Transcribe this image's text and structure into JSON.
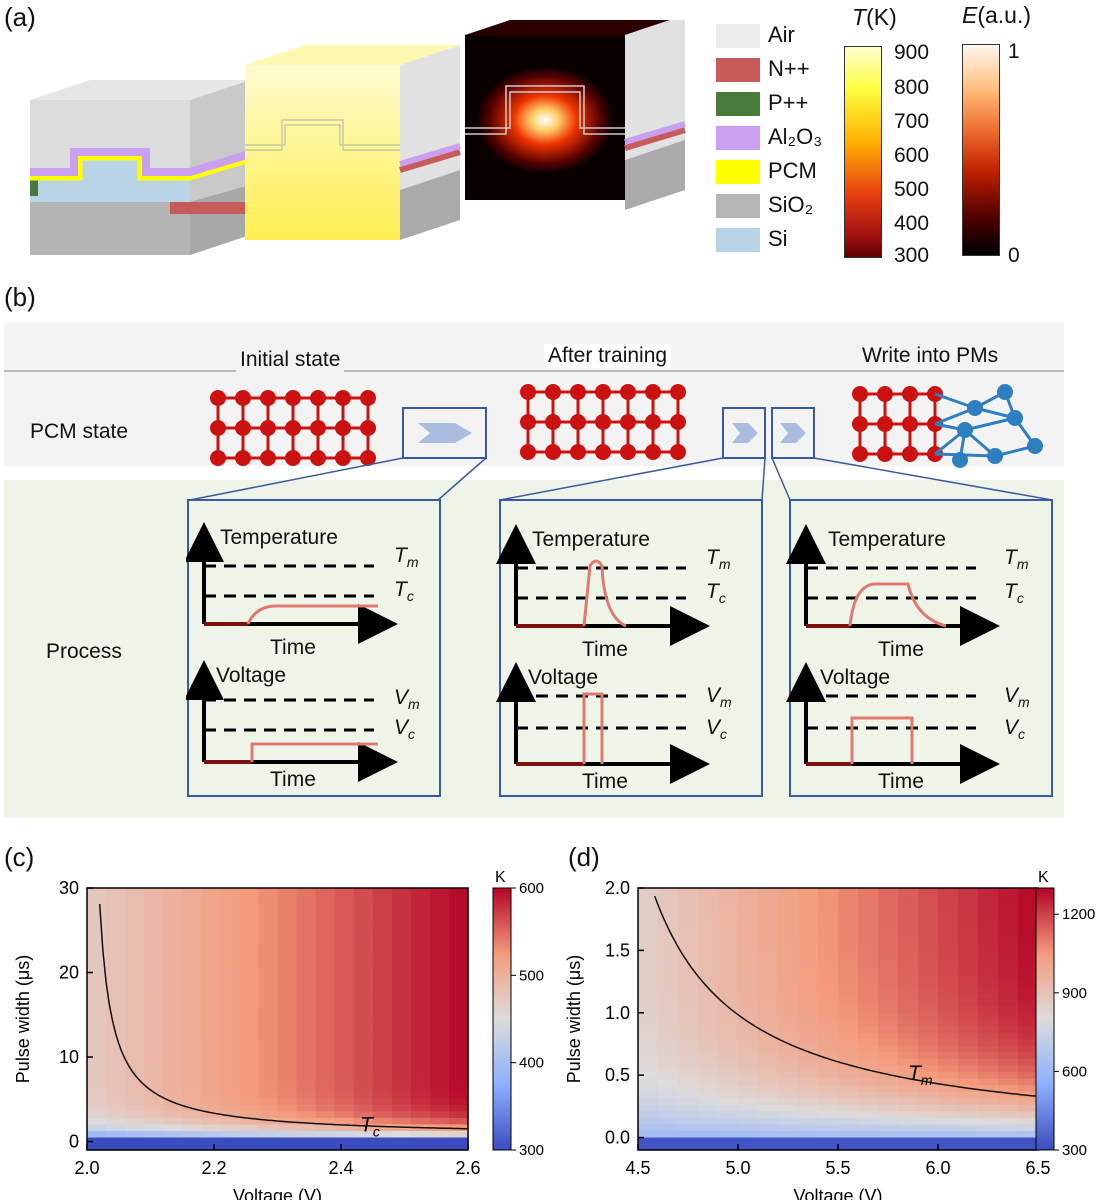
{
  "panels": {
    "a": "(a)",
    "b": "(b)",
    "c": "(c)",
    "d": "(d)"
  },
  "legend_a": [
    {
      "label": "Air",
      "color": "#ebebeb"
    },
    {
      "label": "N++",
      "color": "#c85a5a"
    },
    {
      "label": "P++",
      "color": "#4a7a3a"
    },
    {
      "label": "Al₂O₃",
      "color": "#c8a0ef"
    },
    {
      "label": "PCM",
      "color": "#ffff00"
    },
    {
      "label": "SiO₂",
      "color": "#b5b5b5"
    },
    {
      "label": "Si",
      "color": "#b8d4e6"
    }
  ],
  "colorbar_T": {
    "symbol": "T",
    "unit": "(K)",
    "ticks": [
      "900",
      "800",
      "700",
      "600",
      "500",
      "400",
      "300"
    ]
  },
  "colorbar_E": {
    "symbol": "E",
    "unit": "(a.u.)",
    "max": "1",
    "min": "0"
  },
  "panel_b": {
    "states": [
      "Initial state",
      "After training",
      "Write into PMs"
    ],
    "row_pcm": "PCM state",
    "row_process": "Process",
    "temp_label": "Temperature",
    "volt_label": "Voltage",
    "time_label": "Time",
    "Tm": "T",
    "Tm_sub": "m",
    "Tc": "T",
    "Tc_sub": "c",
    "Vm": "V",
    "Vm_sub": "m",
    "Vc": "V",
    "Vc_sub": "c"
  },
  "chart_data": [
    {
      "type": "heatmap",
      "title": "(c)",
      "xlabel": "Voltage (V)",
      "ylabel": "Pulse width (μs)",
      "xlim": [
        2.0,
        2.6
      ],
      "ylim": [
        -1,
        30
      ],
      "xticks": [
        "2.0",
        "2.2",
        "2.4",
        "2.6"
      ],
      "yticks": [
        "0",
        "10",
        "20",
        "30"
      ],
      "colorbar": {
        "unit": "K",
        "range": [
          300,
          600
        ],
        "ticks": [
          "600",
          "500",
          "400",
          "300"
        ]
      },
      "contour": {
        "label": "T",
        "sub": "c",
        "level_K": 450
      },
      "values_note": "temperature rises with voltage; ~300 K below ~0.5 μs"
    },
    {
      "type": "heatmap",
      "title": "(d)",
      "xlabel": "Voltage (V)",
      "ylabel": "Pulse width (μs)",
      "xlim": [
        4.5,
        6.5
      ],
      "ylim": [
        -0.1,
        2.0
      ],
      "xticks": [
        "4.5",
        "5.0",
        "5.5",
        "6.0",
        "6.5"
      ],
      "yticks": [
        "0.0",
        "0.5",
        "1.0",
        "1.5",
        "2.0"
      ],
      "colorbar": {
        "unit": "K",
        "range": [
          300,
          1300
        ],
        "ticks": [
          "1200",
          "900",
          "600",
          "300"
        ]
      },
      "contour": {
        "label": "T",
        "sub": "m",
        "level_K": 900
      },
      "values_note": "temperature rises with voltage and pulse width"
    }
  ]
}
